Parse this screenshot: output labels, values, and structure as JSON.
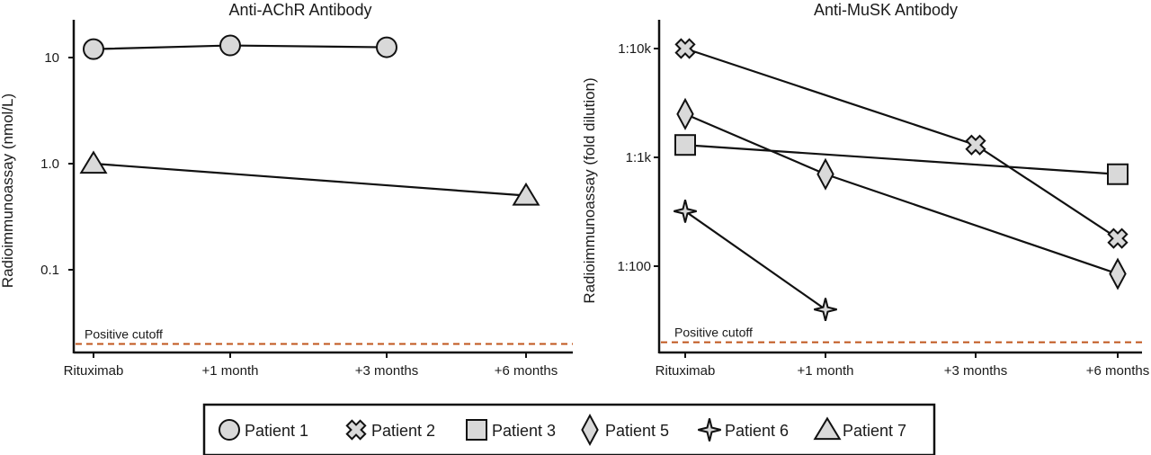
{
  "chart_data": [
    {
      "type": "line",
      "title": "Anti-AChR Antibody",
      "xlabel": "",
      "ylabel": "Radioimmunoassay (nmol/L)",
      "yscale": "log",
      "ytick_values": [
        10,
        1,
        0.1
      ],
      "ytick_labels": [
        "10",
        "1.0",
        "0.1"
      ],
      "ylim": [
        0.018,
        20
      ],
      "categories": [
        "Rituximab",
        "+1 month",
        "+3 months",
        "+6 months"
      ],
      "cutoff": {
        "label": "Positive cutoff",
        "value": 0.02,
        "color": "#c0561c"
      },
      "series": [
        {
          "name": "Patient 1",
          "marker": "circle",
          "values": [
            12,
            13,
            12.5,
            null
          ]
        },
        {
          "name": "Patient 7",
          "marker": "triangle",
          "values": [
            1.0,
            null,
            null,
            0.5
          ]
        }
      ]
    },
    {
      "type": "line",
      "title": "Anti-MuSK Antibody",
      "xlabel": "",
      "ylabel": "Radioimmunoassay (fold dilution)",
      "yscale": "log",
      "ytick_values": [
        10000,
        1000,
        100
      ],
      "ytick_labels": [
        "1:10k",
        "1:1k",
        "1:100"
      ],
      "ylim": [
        18,
        13000
      ],
      "categories": [
        "Rituximab",
        "+1 month",
        "+3 months",
        "+6 months"
      ],
      "cutoff": {
        "label": "Positive cutoff",
        "value": 20,
        "color": "#c0561c"
      },
      "series": [
        {
          "name": "Patient 2",
          "marker": "cross",
          "values": [
            10000,
            null,
            1300,
            180
          ]
        },
        {
          "name": "Patient 3",
          "marker": "square",
          "values": [
            1300,
            null,
            null,
            700
          ]
        },
        {
          "name": "Patient 5",
          "marker": "diamond",
          "values": [
            2500,
            700,
            null,
            85
          ]
        },
        {
          "name": "Patient 6",
          "marker": "star",
          "values": [
            320,
            40,
            null,
            null
          ]
        }
      ]
    }
  ],
  "legend": {
    "items": [
      {
        "label": "Patient 1",
        "marker": "circle"
      },
      {
        "label": "Patient 2",
        "marker": "cross"
      },
      {
        "label": "Patient 3",
        "marker": "square"
      },
      {
        "label": "Patient 5",
        "marker": "diamond"
      },
      {
        "label": "Patient 6",
        "marker": "star"
      },
      {
        "label": "Patient 7",
        "marker": "triangle"
      }
    ]
  },
  "style": {
    "marker_fill": "#d9d9d9",
    "line_color": "#111111",
    "cutoff_color": "#c0561c"
  }
}
